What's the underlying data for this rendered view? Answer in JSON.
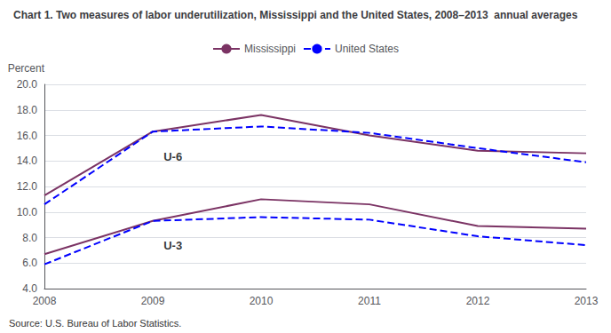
{
  "chart_data": {
    "type": "line",
    "title": "Chart 1. Two measures of labor underutilization, Mississippi and the United States, 2008–2013  annual averages",
    "ylabel": "Percent",
    "source": "Source: U.S. Bureau of Labor Statistics.",
    "x": [
      2008,
      2009,
      2010,
      2011,
      2012,
      2013
    ],
    "series": [
      {
        "name": "Mississippi",
        "color": "#7B3364",
        "line_style": "solid",
        "values": [
          11.3,
          16.3,
          17.6,
          16.0,
          14.8,
          14.6
        ]
      },
      {
        "name": "United States",
        "color": "#0000FF",
        "line_style": "dashed",
        "values": [
          10.6,
          16.3,
          16.7,
          16.2,
          15.0,
          13.9
        ]
      },
      {
        "name": "Mississippi",
        "color": "#7B3364",
        "line_style": "solid",
        "values": [
          6.7,
          9.3,
          11.0,
          10.6,
          8.9,
          8.7
        ]
      },
      {
        "name": "United States",
        "color": "#0000FF",
        "line_style": "dashed",
        "values": [
          5.9,
          9.3,
          9.6,
          9.4,
          8.1,
          7.4
        ]
      }
    ],
    "annotations": [
      {
        "text": "U-6",
        "x": 2009.1,
        "y": 14.3
      },
      {
        "text": "U-3",
        "x": 2009.1,
        "y": 7.35
      }
    ],
    "xlim": [
      2008,
      2013
    ],
    "xticks": [
      2008,
      2009,
      2010,
      2011,
      2012,
      2013
    ],
    "ylim": [
      4.0,
      20.0
    ],
    "yticks": [
      {
        "value": 4.0,
        "label": "4.0"
      },
      {
        "value": 6.0,
        "label": "6.0"
      },
      {
        "value": 8.0,
        "label": "8.0"
      },
      {
        "value": 10.0,
        "label": "10.0"
      },
      {
        "value": 12.0,
        "label": "12.0"
      },
      {
        "value": 14.0,
        "label": "14.0"
      },
      {
        "value": 16.0,
        "label": "16.0"
      },
      {
        "value": 18.0,
        "label": "18.0"
      },
      {
        "value": 20.0,
        "label": "20.0"
      }
    ],
    "grid": true,
    "legend": "top"
  }
}
